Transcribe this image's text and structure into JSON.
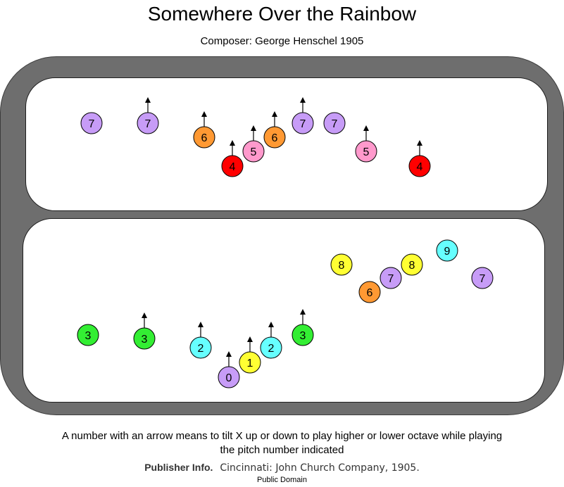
{
  "title": "Somewhere Over the Rainbow",
  "subtitle": "Composer: George Henschel 1905",
  "caption_line1": "A number with an arrow means to tilt X up or down to play higher or lower octave while playing",
  "caption_line2": "the pitch number indicated",
  "publisher_label": "Publisher Info.",
  "publisher_value": "Cincinnati: John Church Company, 1905.",
  "license": "Public Domain",
  "colors": {
    "0": "#c79cf7",
    "1": "#ffff33",
    "2": "#66ffff",
    "3": "#33ee33",
    "4": "#ff0000",
    "5": "#ff99cc",
    "6": "#ff9933",
    "7": "#c79cf7",
    "8": "#ffff33",
    "9": "#66ffff"
  },
  "rows": [
    {
      "name": "line-1",
      "notes": [
        {
          "pitch": "7",
          "arrow": false
        },
        {
          "pitch": "7",
          "arrow": true
        },
        {
          "pitch": "6",
          "arrow": true
        },
        {
          "pitch": "4",
          "arrow": true
        },
        {
          "pitch": "5",
          "arrow": true
        },
        {
          "pitch": "6",
          "arrow": true
        },
        {
          "pitch": "7",
          "arrow": true
        },
        {
          "pitch": "7",
          "arrow": false
        },
        {
          "pitch": "5",
          "arrow": true
        },
        {
          "pitch": "4",
          "arrow": true
        }
      ]
    },
    {
      "name": "line-2",
      "notes": [
        {
          "pitch": "3",
          "arrow": false
        },
        {
          "pitch": "3",
          "arrow": true
        },
        {
          "pitch": "2",
          "arrow": true
        },
        {
          "pitch": "0",
          "arrow": true
        },
        {
          "pitch": "1",
          "arrow": true
        },
        {
          "pitch": "2",
          "arrow": true
        },
        {
          "pitch": "3",
          "arrow": true
        },
        {
          "pitch": "8",
          "arrow": false
        },
        {
          "pitch": "6",
          "arrow": false
        },
        {
          "pitch": "7",
          "arrow": false
        },
        {
          "pitch": "8",
          "arrow": false
        },
        {
          "pitch": "9",
          "arrow": false
        },
        {
          "pitch": "7",
          "arrow": false
        }
      ]
    }
  ]
}
